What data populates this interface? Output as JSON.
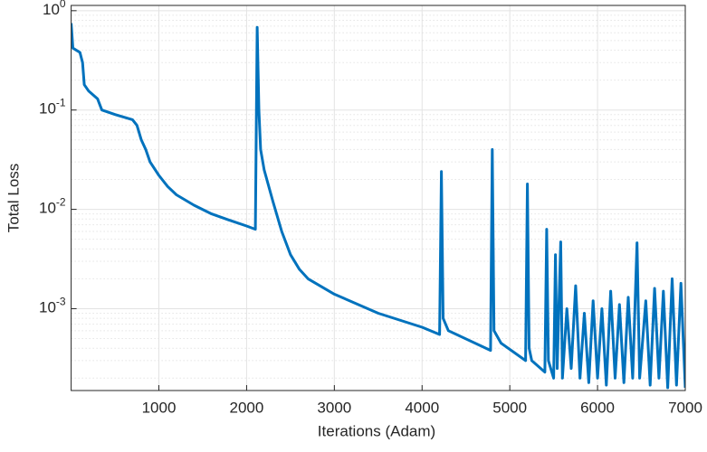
{
  "chart_data": {
    "type": "line",
    "xlabel": "Iterations (Adam)",
    "ylabel": "Total Loss",
    "x": [
      0,
      20,
      100,
      130,
      150,
      200,
      300,
      350,
      500,
      700,
      750,
      800,
      850,
      900,
      1000,
      1100,
      1200,
      1400,
      1600,
      1800,
      2000,
      2100,
      2120,
      2140,
      2160,
      2200,
      2300,
      2400,
      2500,
      2600,
      2700,
      3000,
      3500,
      4000,
      4200,
      4220,
      4240,
      4300,
      4780,
      4800,
      4820,
      4900,
      5180,
      5200,
      5220,
      5250,
      5400,
      5420,
      5440,
      5500,
      5520,
      5540,
      5580,
      5600,
      5650,
      5700,
      5750,
      5800,
      5850,
      5900,
      5950,
      6000,
      6050,
      6100,
      6150,
      6200,
      6250,
      6300,
      6350,
      6400,
      6450,
      6480,
      6550,
      6600,
      6650,
      6700,
      6750,
      6800,
      6850,
      6900,
      6950,
      7000
    ],
    "series": [
      {
        "color": "#0072bd",
        "values": [
          0.75,
          0.42,
          0.38,
          0.3,
          0.18,
          0.155,
          0.13,
          0.1,
          0.09,
          0.08,
          0.07,
          0.05,
          0.04,
          0.03,
          0.022,
          0.017,
          0.014,
          0.011,
          0.009,
          0.0078,
          0.0068,
          0.0063,
          0.68,
          0.1,
          0.04,
          0.025,
          0.012,
          0.006,
          0.0035,
          0.0025,
          0.002,
          0.0014,
          0.0009,
          0.00065,
          0.00055,
          0.024,
          0.0008,
          0.0006,
          0.00038,
          0.04,
          0.0006,
          0.00045,
          0.0003,
          0.018,
          0.0004,
          0.0003,
          0.00023,
          0.0063,
          0.0003,
          0.0002,
          0.0035,
          0.00025,
          0.0047,
          0.0002,
          0.001,
          0.00025,
          0.0017,
          0.0002,
          0.0009,
          0.00018,
          0.0012,
          0.0002,
          0.001,
          0.00017,
          0.0015,
          0.0002,
          0.0011,
          0.00018,
          0.0013,
          0.0002,
          0.0046,
          0.0002,
          0.0012,
          0.00017,
          0.0016,
          0.0002,
          0.0015,
          0.00016,
          0.002,
          0.00017,
          0.0018,
          0.00016
        ]
      }
    ],
    "xlim": [
      0,
      7000
    ],
    "xticks": [
      1000,
      2000,
      3000,
      4000,
      5000,
      6000,
      7000
    ],
    "ylim": [
      0.00015,
      1.13
    ],
    "log_y": true,
    "yticks": [
      {
        "value": 0.001,
        "label": "10^-3"
      },
      {
        "value": 0.01,
        "label": "10^-2"
      },
      {
        "value": 0.1,
        "label": "10^-1"
      },
      {
        "value": 1,
        "label": "10^0"
      }
    ],
    "grid": true,
    "minor_grid": true
  }
}
